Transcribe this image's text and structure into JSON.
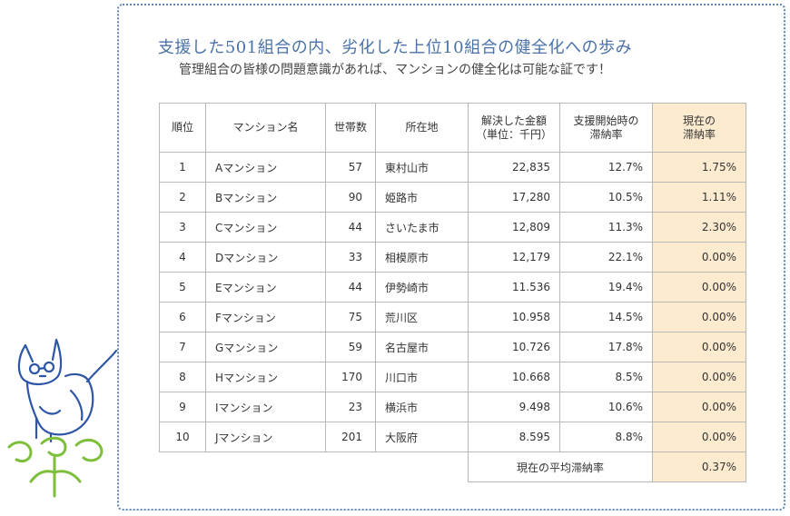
{
  "title": "支援した501組合の内、劣化した上位10組合の健全化への歩み",
  "subtitle": "管理組合の皆様の問題意識があれば、マンションの健全化は可能な証です！",
  "table": {
    "headers": {
      "rank": "順位",
      "name": "マンション名",
      "households": "世帯数",
      "location": "所在地",
      "amount_line1": "解決した金額",
      "amount_line2": "（単位：千円）",
      "start_line1": "支援開始時の",
      "start_line2": "滞納率",
      "current_line1": "現在の",
      "current_line2": "滞納率"
    },
    "rows": [
      {
        "rank": "1",
        "name": "Aマンション",
        "households": "57",
        "location": "東村山市",
        "amount": "22,835",
        "start": "12.7%",
        "current": "1.75%"
      },
      {
        "rank": "2",
        "name": "Bマンション",
        "households": "90",
        "location": "姫路市",
        "amount": "17,280",
        "start": "10.5%",
        "current": "1.11%"
      },
      {
        "rank": "3",
        "name": "Cマンション",
        "households": "44",
        "location": "さいたま市",
        "amount": "12,809",
        "start": "11.3%",
        "current": "2.30%"
      },
      {
        "rank": "4",
        "name": "Dマンション",
        "households": "33",
        "location": "相模原市",
        "amount": "12,179",
        "start": "22.1%",
        "current": "0.00%"
      },
      {
        "rank": "5",
        "name": "Eマンション",
        "households": "44",
        "location": "伊勢崎市",
        "amount": "11.536",
        "start": "19.4%",
        "current": "0.00%"
      },
      {
        "rank": "6",
        "name": "Fマンション",
        "households": "75",
        "location": "荒川区",
        "amount": "10.958",
        "start": "14.5%",
        "current": "0.00%"
      },
      {
        "rank": "7",
        "name": "Gマンション",
        "households": "59",
        "location": "名古屋市",
        "amount": "10.726",
        "start": "17.8%",
        "current": "0.00%"
      },
      {
        "rank": "8",
        "name": "Hマンション",
        "households": "170",
        "location": "川口市",
        "amount": "10.668",
        "start": "8.5%",
        "current": "0.00%"
      },
      {
        "rank": "9",
        "name": "Iマンション",
        "households": "23",
        "location": "横浜市",
        "amount": "9.498",
        "start": "10.6%",
        "current": "0.00%"
      },
      {
        "rank": "10",
        "name": "Jマンション",
        "households": "201",
        "location": "大阪府",
        "amount": "8.595",
        "start": "8.8%",
        "current": "0.00%"
      }
    ],
    "average_label": "現在の平均滞納率",
    "average_value": "0.37%"
  },
  "colors": {
    "title": "#4a72a8",
    "frame_border": "#5a87b8",
    "highlight_column": "#fdebd0",
    "cat_line": "#2e55a6",
    "leaf_green": "#7cbf3a"
  },
  "illustration": "cat-on-leaves-icon"
}
